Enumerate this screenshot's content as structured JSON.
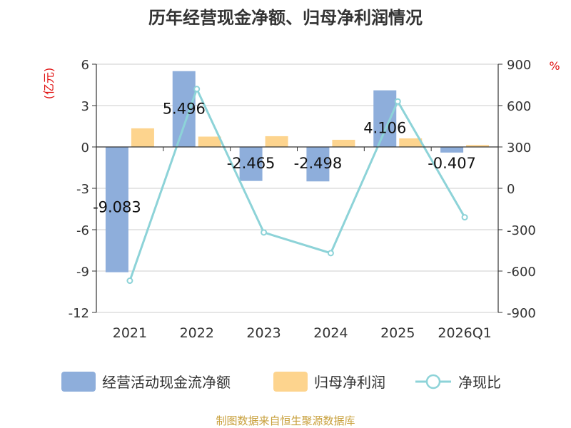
{
  "colors": {
    "cash_flow": "#8eaedb",
    "net_profit": "#fdd48e",
    "ratio": "#8dd3d8",
    "axis": "#333333",
    "grid": "#cccccc",
    "unit_label": "#e01010",
    "source": "#c8a03c",
    "text": "#333333"
  },
  "chart_data": {
    "type": "bar",
    "title": "历年经营现金净额、归母净利润情况",
    "categories": [
      "2021",
      "2022",
      "2023",
      "2024",
      "2025",
      "2026Q1"
    ],
    "series": [
      {
        "name": "经营活动现金流净额",
        "kind": "bar",
        "axis": "left",
        "values": [
          -9.083,
          5.496,
          -2.465,
          -2.498,
          4.106,
          -0.407
        ],
        "data_labels": [
          "-9.083",
          "5.496",
          "-2.465",
          "-2.498",
          "4.106",
          "-0.407"
        ]
      },
      {
        "name": "归母净利润",
        "kind": "bar",
        "axis": "left",
        "values": [
          1.35,
          0.75,
          0.78,
          0.52,
          0.62,
          0.14
        ]
      },
      {
        "name": "净现比",
        "kind": "line",
        "axis": "right",
        "values": [
          -670,
          720,
          -320,
          -470,
          630,
          -210
        ]
      }
    ],
    "y_left": {
      "label": "(亿元)",
      "ylim": [
        -12,
        6
      ],
      "ticks": [
        6,
        3,
        0,
        -3,
        -6,
        -9,
        -12
      ],
      "tick_labels": [
        "6",
        "3",
        "0",
        "-3",
        "-6",
        "-9",
        "-12"
      ]
    },
    "y_right": {
      "label": "%",
      "ylim": [
        -900,
        900
      ],
      "ticks": [
        900,
        600,
        300,
        0,
        -300,
        -600,
        -900
      ],
      "tick_labels": [
        "900",
        "600",
        "300",
        "0",
        "-300",
        "-600",
        "-900"
      ]
    },
    "grid": true,
    "legend_position": "bottom"
  },
  "source": "制图数据来自恒生聚源数据库"
}
